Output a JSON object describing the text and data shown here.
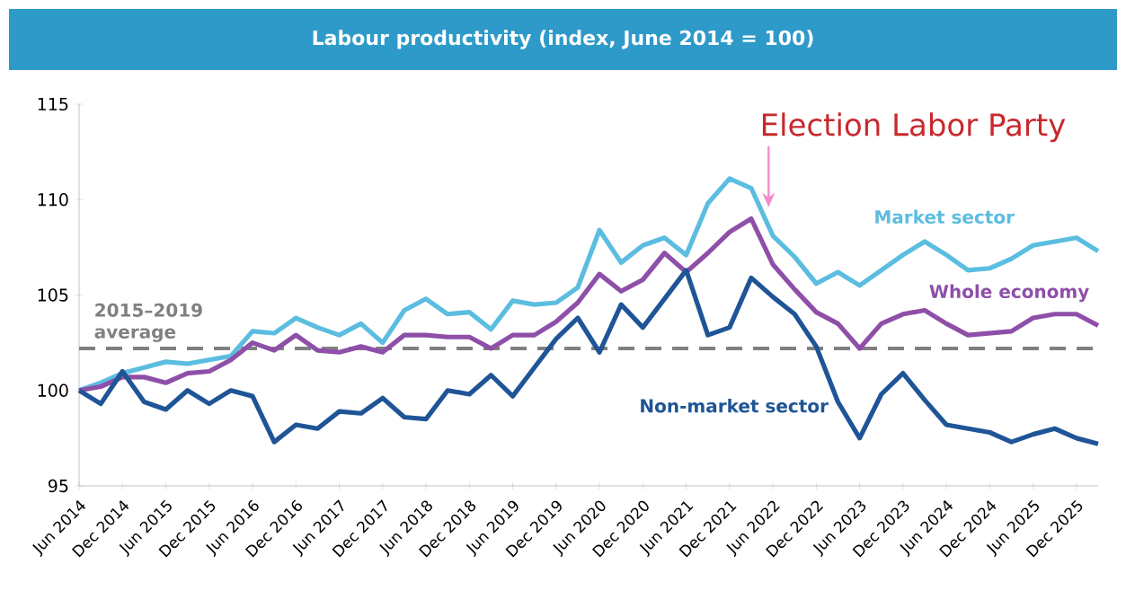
{
  "chart_data": {
    "type": "line",
    "title": "Labour productivity (index, June 2014 = 100)",
    "categories": [
      "Jun 2014",
      null,
      "Dec 2014",
      null,
      "Jun 2015",
      null,
      "Dec 2015",
      null,
      "Jun 2016",
      null,
      "Dec 2016",
      null,
      "Jun 2017",
      null,
      "Dec 2017",
      null,
      "Jun 2018",
      null,
      "Dec 2018",
      null,
      "Jun 2019",
      null,
      "Dec 2019",
      null,
      "Jun 2020",
      null,
      "Dec 2020",
      null,
      "Jun 2021",
      null,
      "Dec 2021",
      null,
      "Jun 2022",
      null,
      "Dec 2022",
      null,
      "Jun 2023",
      null,
      "Dec 2023",
      null,
      "Jun 2024",
      null,
      "Dec 2024",
      null,
      "Jun 2025",
      null,
      "Dec 2025",
      null
    ],
    "series": [
      {
        "name": "Market sector",
        "color": "#5bbde0",
        "values": [
          100,
          100.4,
          100.9,
          101.2,
          101.5,
          101.4,
          101.6,
          101.8,
          103.1,
          103.0,
          103.8,
          103.3,
          102.9,
          103.5,
          102.5,
          104.2,
          104.8,
          104.0,
          104.1,
          103.2,
          104.7,
          104.5,
          104.6,
          105.4,
          108.4,
          106.7,
          107.6,
          108.0,
          107.1,
          109.8,
          111.1,
          110.6,
          108.1,
          107.0,
          105.6,
          106.2,
          105.5,
          106.3,
          107.1,
          107.8,
          107.1,
          106.3,
          106.4,
          106.9,
          107.6,
          107.8,
          108.0,
          107.3
        ]
      },
      {
        "name": "Whole economy",
        "color": "#8e4fa8",
        "values": [
          100,
          100.2,
          100.7,
          100.7,
          100.4,
          100.9,
          101.0,
          101.6,
          102.5,
          102.1,
          102.9,
          102.1,
          102.0,
          102.3,
          102.0,
          102.9,
          102.9,
          102.8,
          102.8,
          102.2,
          102.9,
          102.9,
          103.6,
          104.6,
          106.1,
          105.2,
          105.8,
          107.2,
          106.2,
          107.2,
          108.3,
          109.0,
          106.6,
          105.3,
          104.1,
          103.5,
          102.2,
          103.5,
          104.0,
          104.2,
          103.5,
          102.9,
          103.0,
          103.1,
          103.8,
          104.0,
          104.0,
          103.4
        ]
      },
      {
        "name": "Non-market sector",
        "color": "#1f5596",
        "values": [
          100,
          99.3,
          101.0,
          99.4,
          99.0,
          100.0,
          99.3,
          100.0,
          99.7,
          97.3,
          98.2,
          98.0,
          98.9,
          98.8,
          99.6,
          98.6,
          98.5,
          100.0,
          99.8,
          100.8,
          99.7,
          101.2,
          102.7,
          103.8,
          102.0,
          104.5,
          103.3,
          104.8,
          106.3,
          102.9,
          103.3,
          105.9,
          104.9,
          104.0,
          102.3,
          99.4,
          97.5,
          99.8,
          100.9,
          99.5,
          98.2,
          98.0,
          97.8,
          97.3,
          97.7,
          98.0,
          97.5,
          97.2
        ]
      }
    ],
    "ylim": [
      95,
      115
    ],
    "yticks": [
      95,
      100,
      105,
      110,
      115
    ],
    "line_style": "solid",
    "ref_lines": [
      {
        "axis": "y",
        "value": 102.2,
        "label": "2015–2019 average",
        "color": "#808080",
        "line_style": "dashed"
      }
    ],
    "annotations": [
      "Election Labor Party"
    ]
  }
}
